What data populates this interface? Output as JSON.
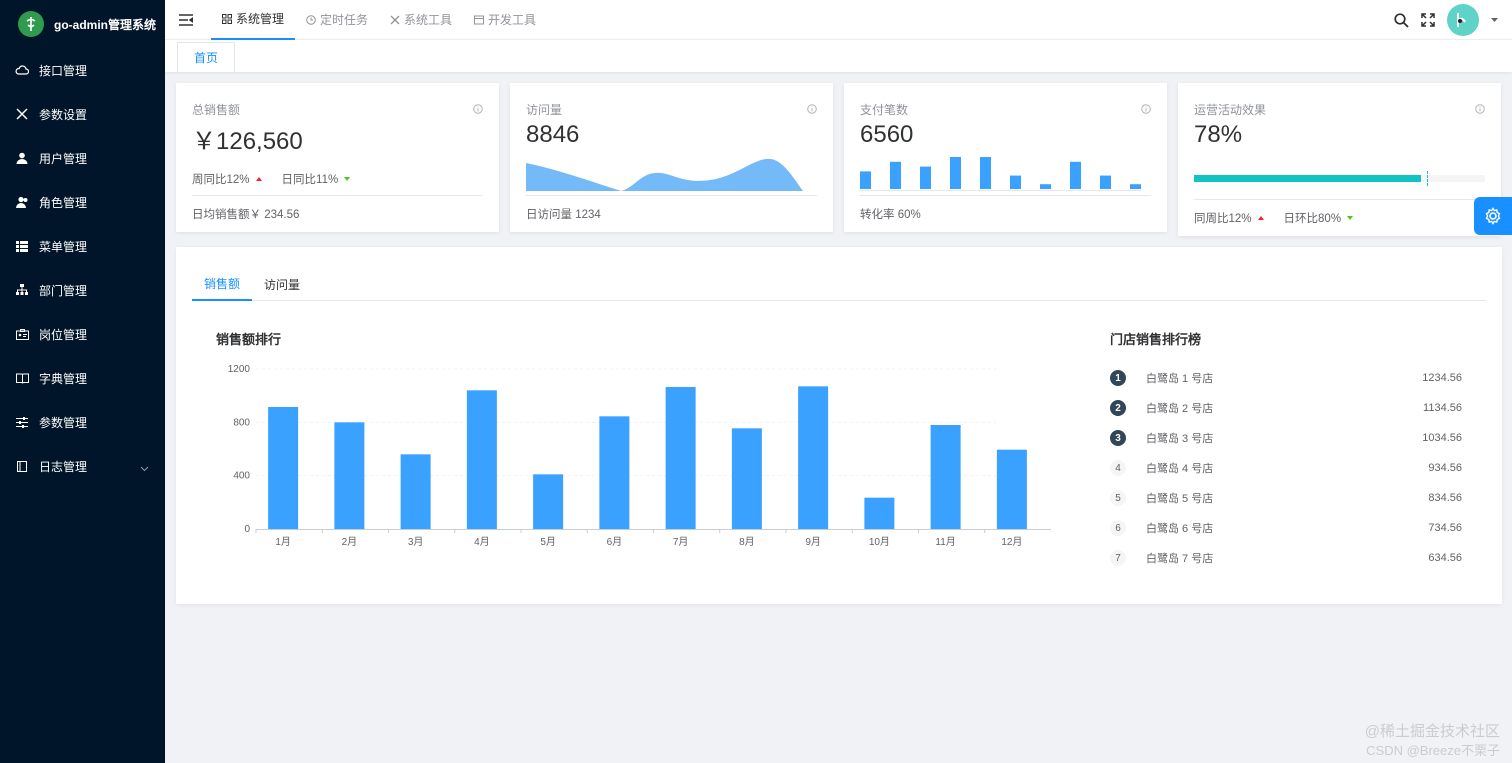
{
  "app": {
    "title": "go-admin管理系统"
  },
  "sidebar": {
    "items": [
      {
        "label": "接口管理",
        "icon": "cloud-icon"
      },
      {
        "label": "参数设置",
        "icon": "tools-icon"
      },
      {
        "label": "用户管理",
        "icon": "user-icon"
      },
      {
        "label": "角色管理",
        "icon": "users-icon"
      },
      {
        "label": "菜单管理",
        "icon": "list-icon"
      },
      {
        "label": "部门管理",
        "icon": "sitemap-icon"
      },
      {
        "label": "岗位管理",
        "icon": "id-card-icon"
      },
      {
        "label": "字典管理",
        "icon": "book-icon"
      },
      {
        "label": "参数管理",
        "icon": "sliders-icon"
      },
      {
        "label": "日志管理",
        "icon": "log-icon"
      }
    ]
  },
  "header": {
    "nav": [
      {
        "label": "系统管理",
        "active": true
      },
      {
        "label": "定时任务",
        "active": false
      },
      {
        "label": "系统工具",
        "active": false
      },
      {
        "label": "开发工具",
        "active": false
      }
    ]
  },
  "tagbar": {
    "home": "首页"
  },
  "cards": {
    "sales": {
      "title": "总销售额",
      "value": "￥126,560",
      "week_label": "周同比12%",
      "day_label": "日同比11%",
      "footer": "日均销售额￥ 234.56"
    },
    "visits": {
      "title": "访问量",
      "value": "8846",
      "footer": "日访问量 1234"
    },
    "payments": {
      "title": "支付笔数",
      "value": "6560",
      "footer": "转化率 60%",
      "bars": [
        0.55,
        0.85,
        0.7,
        1.0,
        1.0,
        0.42,
        0.15,
        0.85,
        0.42,
        0.15
      ]
    },
    "operation": {
      "title": "运营活动效果",
      "value": "78%",
      "progress": 0.78,
      "week_label": "同周比12%",
      "day_label": "日环比80%"
    }
  },
  "panel": {
    "tabs": [
      {
        "label": "销售额",
        "active": true
      },
      {
        "label": "访问量",
        "active": false
      }
    ],
    "chart_title": "销售额排行",
    "ranking_title": "门店销售排行榜",
    "ranking": [
      {
        "rank": "1",
        "name": "白鹭岛 1 号店",
        "value": "1234.56"
      },
      {
        "rank": "2",
        "name": "白鹭岛 2 号店",
        "value": "1134.56"
      },
      {
        "rank": "3",
        "name": "白鹭岛 3 号店",
        "value": "1034.56"
      },
      {
        "rank": "4",
        "name": "白鹭岛 4 号店",
        "value": "934.56"
      },
      {
        "rank": "5",
        "name": "白鹭岛 5 号店",
        "value": "834.56"
      },
      {
        "rank": "6",
        "name": "白鹭岛 6 号店",
        "value": "734.56"
      },
      {
        "rank": "7",
        "name": "白鹭岛 7 号店",
        "value": "634.56"
      }
    ]
  },
  "chart_data": {
    "type": "bar",
    "categories": [
      "1月",
      "2月",
      "3月",
      "4月",
      "5月",
      "6月",
      "7月",
      "8月",
      "9月",
      "10月",
      "11月",
      "12月"
    ],
    "values": [
      915,
      800,
      560,
      1040,
      410,
      845,
      1065,
      755,
      1070,
      235,
      780,
      595
    ],
    "yticks": [
      0,
      400,
      800,
      1200
    ],
    "ylim": [
      0,
      1200
    ],
    "color": "#3aa1ff"
  },
  "watermark": {
    "line1": "@稀土掘金技术社区",
    "line2": "CSDN @Breeze不栗子"
  },
  "colors": {
    "sidebar": "#001529",
    "accent": "#1890ff",
    "bar": "#3aa1ff",
    "area": "#74b9f8",
    "progress": "#13c2c2"
  }
}
